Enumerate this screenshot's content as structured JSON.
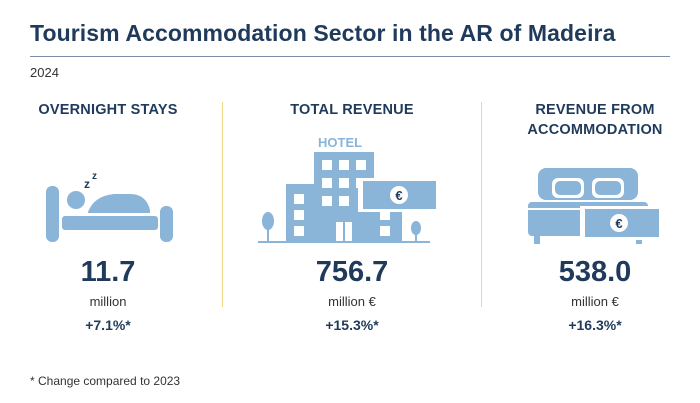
{
  "title": "Tourism Accommodation Sector in the AR of Madeira",
  "year": "2024",
  "indicators": [
    {
      "heading_line1": "OVERNIGHT STAYS",
      "heading_line2": "",
      "value": "11.7",
      "unit": "million",
      "change": "+7.1%*",
      "icon": "bed-sleeping-icon"
    },
    {
      "heading_line1": "TOTAL REVENUE",
      "heading_line2": "",
      "value": "756.7",
      "unit": "million €",
      "change": "+15.3%*",
      "icon": "hotel-building-icon",
      "icon_text": "HOTEL",
      "currency_symbol": "€"
    },
    {
      "heading_line1": "REVENUE FROM",
      "heading_line2": "ACCOMMODATION",
      "value": "538.0",
      "unit": "million €",
      "change": "+16.3%*",
      "icon": "double-bed-money-icon",
      "currency_symbol": "€"
    }
  ],
  "footnote": "* Change compared to 2023",
  "colors": {
    "primary": "#1f3a5a",
    "icon": "#8ab4d8",
    "separator": "#f2d98a"
  }
}
